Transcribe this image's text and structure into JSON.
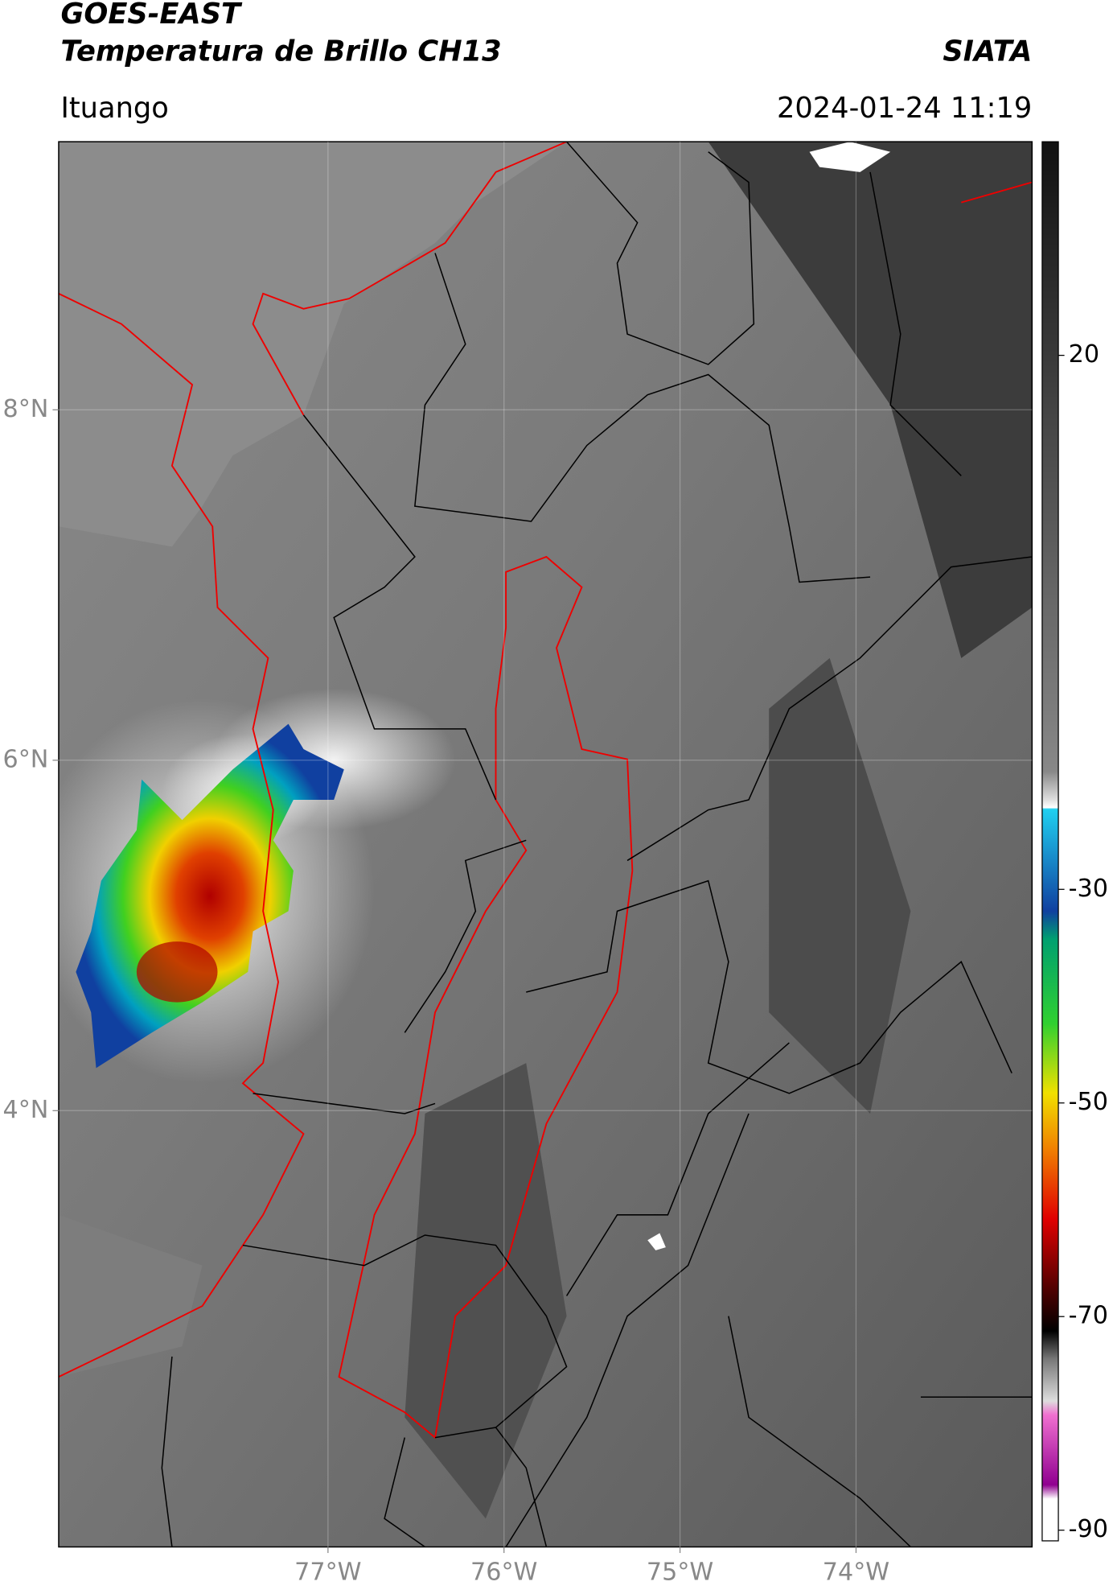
{
  "header": {
    "title": "GOES-EAST",
    "subtitle": "Temperatura de Brillo CH13",
    "source": "SIATA",
    "location": "Ituango",
    "datetime": "2024-01-24 11:19"
  },
  "map": {
    "xlim": [
      -78.53,
      -73.0
    ],
    "ylim": [
      1.51,
      9.53
    ],
    "grid": true,
    "xticks": [
      {
        "value": -77,
        "label": "77°W"
      },
      {
        "value": -76,
        "label": "76°W"
      },
      {
        "value": -75,
        "label": "75°W"
      },
      {
        "value": -74,
        "label": "74°W"
      }
    ],
    "yticks": [
      {
        "value": 8,
        "label": "8°N"
      },
      {
        "value": 6,
        "label": "6°N"
      },
      {
        "value": 4,
        "label": "4°N"
      }
    ]
  },
  "colorbar": {
    "lim": [
      -91,
      40
    ],
    "ticks": [
      20,
      -30,
      -50,
      -70,
      -90
    ]
  }
}
